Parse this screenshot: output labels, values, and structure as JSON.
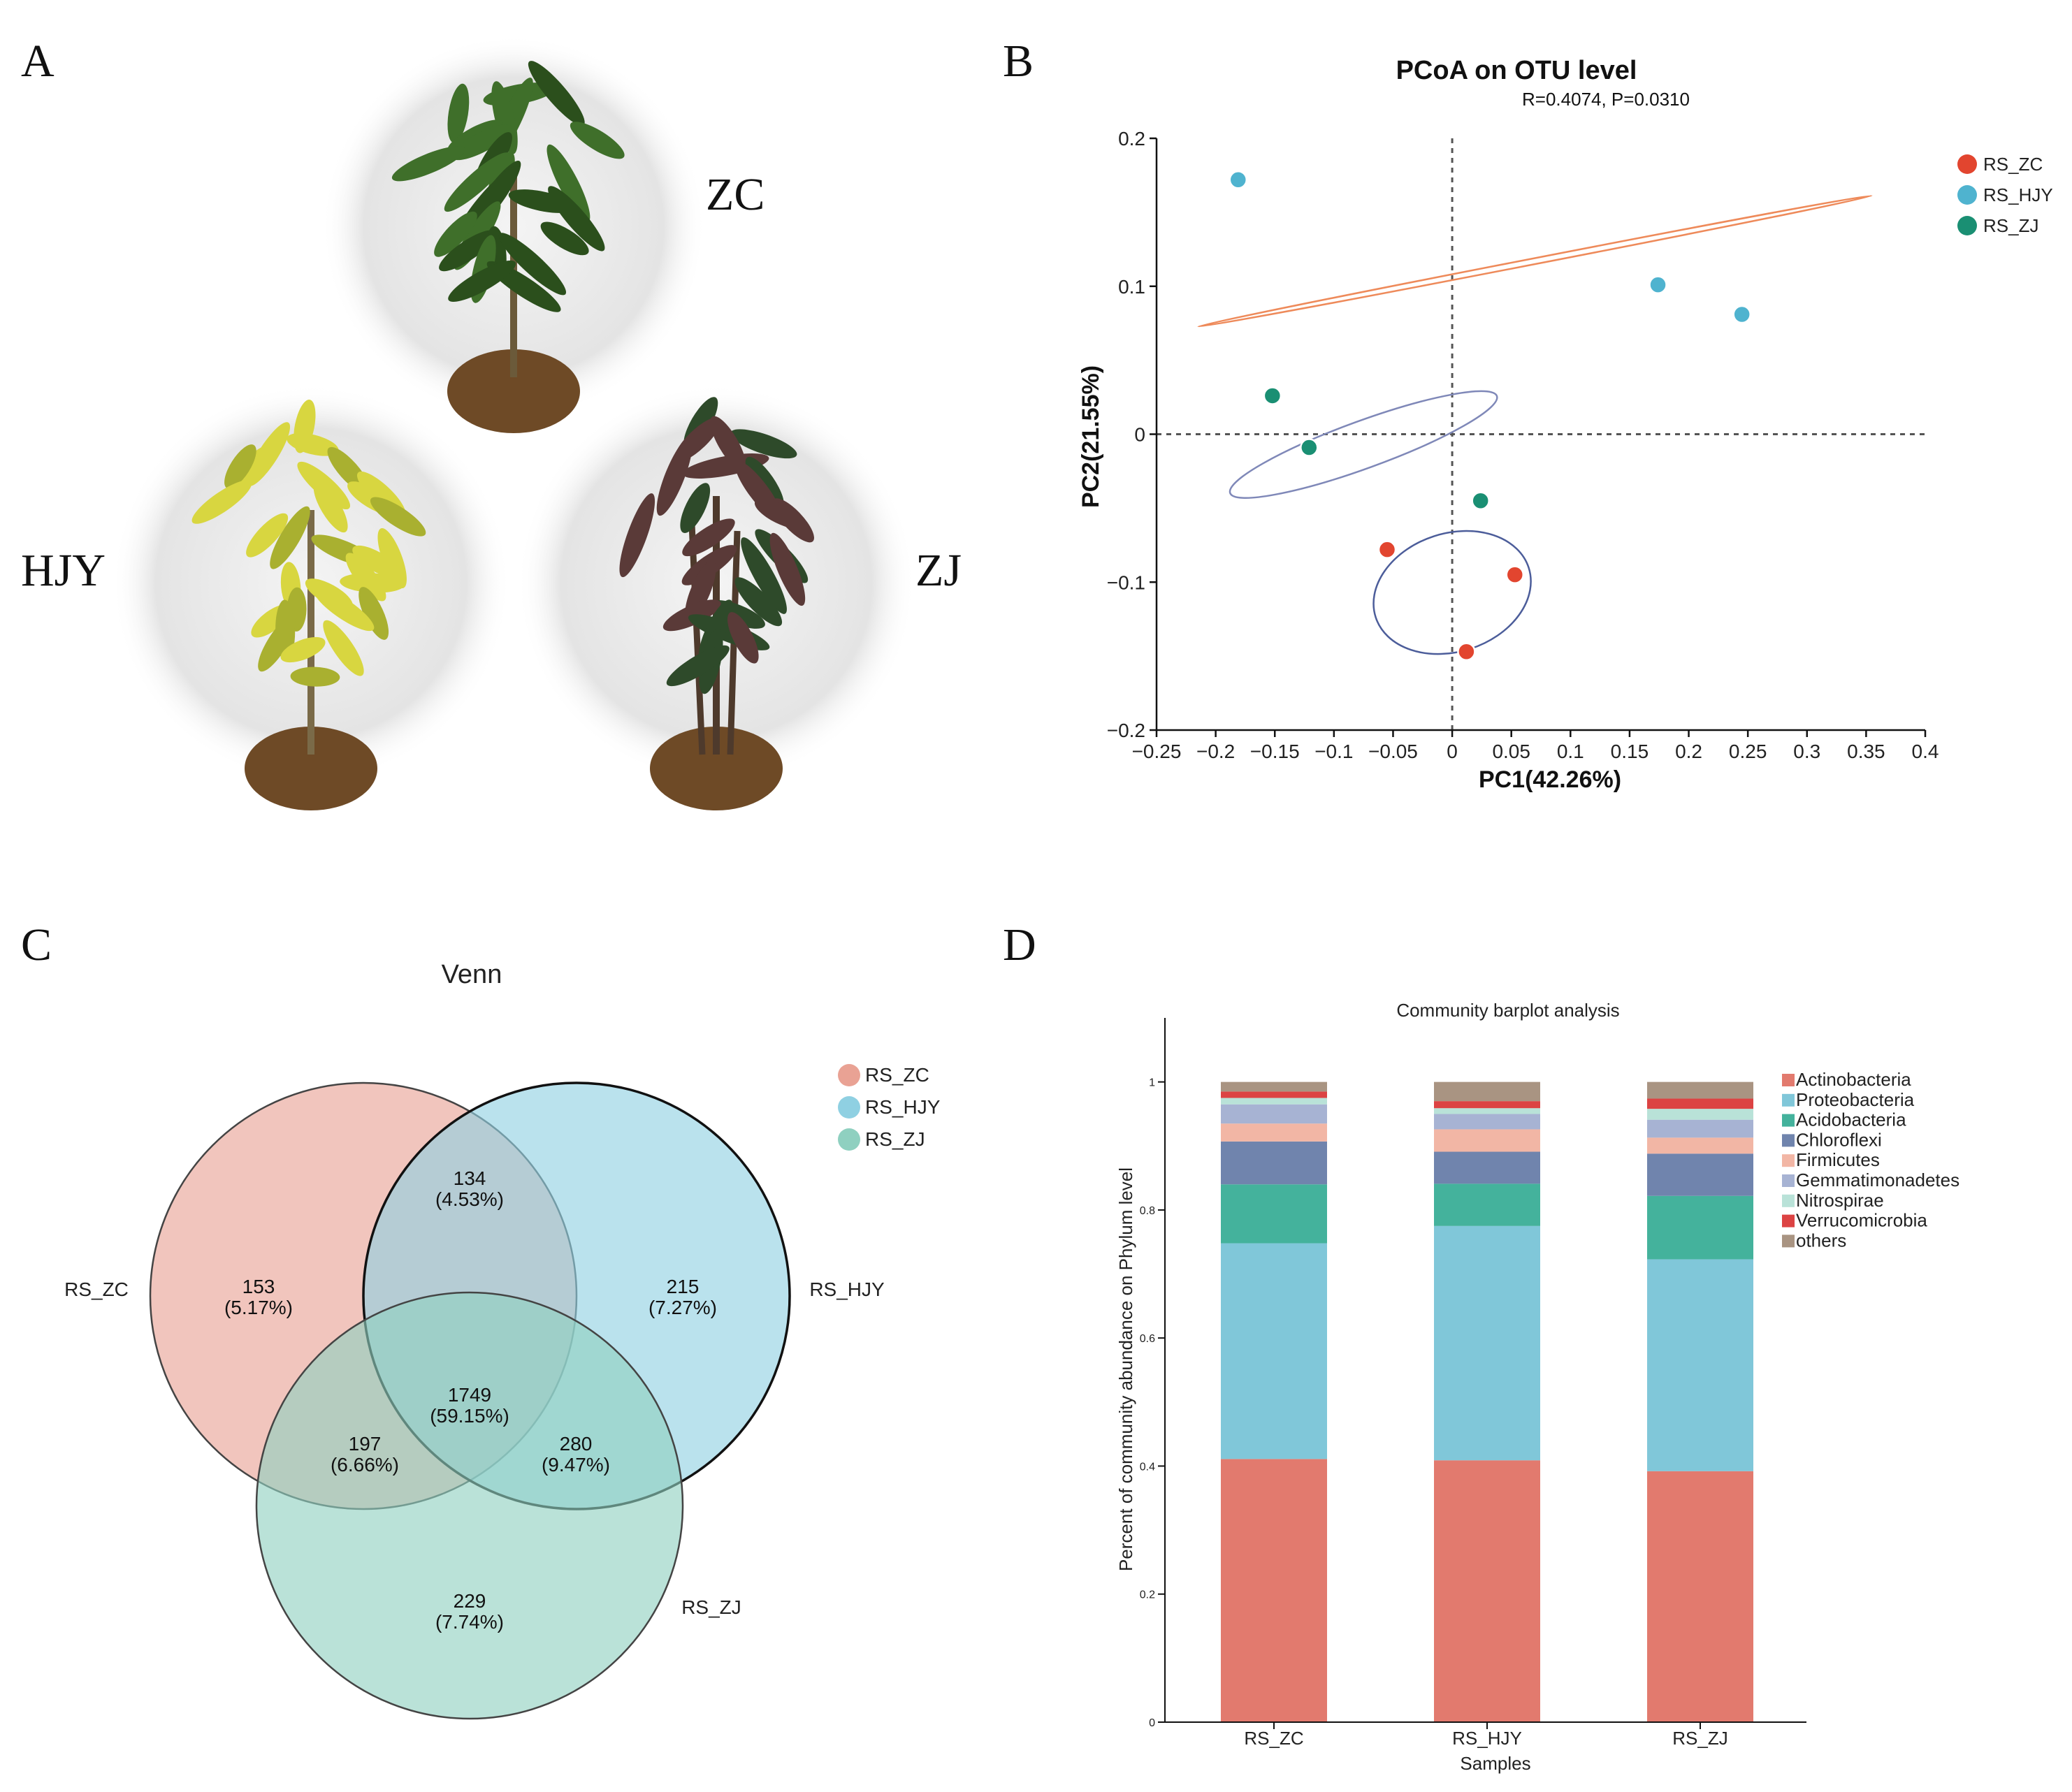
{
  "panels": {
    "a": {
      "letter": "A",
      "plants": [
        {
          "label": "ZC",
          "leaf": "#3f6f2a",
          "leaf_dark": "#2b4f1c",
          "stem": "#6b5a3a"
        },
        {
          "label": "HJY",
          "leaf": "#d8d640",
          "leaf_dark": "#a9b030",
          "stem": "#7a6a48"
        },
        {
          "label": "ZJ",
          "leaf": "#5a3a38",
          "leaf_dark": "#2e4a2a",
          "stem": "#4e3a2c"
        }
      ],
      "soil_color": "#6e4a26"
    },
    "b": {
      "letter": "B",
      "title": "PCoA on OTU level",
      "subtitle": "R=0.4074, P=0.0310",
      "xlabel": "PC1(42.26%)",
      "ylabel": "PC2(21.55%)"
    },
    "c": {
      "letter": "C",
      "title": "Venn"
    },
    "d": {
      "letter": "D"
    }
  },
  "chart_data": [
    {
      "type": "scatter",
      "title": "PCoA on OTU level",
      "subtitle": "R=0.4074, P=0.0310",
      "xlabel": "PC1(42.26%)",
      "ylabel": "PC2(21.55%)",
      "xlim": [
        -0.25,
        0.4
      ],
      "ylim": [
        -0.2,
        0.2
      ],
      "xticks": [
        -0.25,
        -0.2,
        -0.15,
        -0.1,
        -0.05,
        0,
        0.05,
        0.1,
        0.15,
        0.2,
        0.25,
        0.3,
        0.35,
        0.4
      ],
      "xtick_labels": [
        "−0.25",
        "−0.2",
        "−0.15",
        "−0.1",
        "−0.05",
        "0",
        "0.05",
        "0.1",
        "0.15",
        "0.2",
        "0.25",
        "0.3",
        "0.35",
        "0.4"
      ],
      "yticks": [
        -0.2,
        -0.1,
        0,
        0.1,
        0.2
      ],
      "ytick_labels": [
        "−0.2",
        "−0.1",
        "0",
        "0.1",
        "0.2"
      ],
      "legend_position": "top-right",
      "series": [
        {
          "name": "RS_ZC",
          "color": "#e2452f",
          "points": [
            [
              -0.055,
              -0.078
            ],
            [
              0.053,
              -0.095
            ],
            [
              0.012,
              -0.147
            ]
          ],
          "ellipse": {
            "cx": 0.0,
            "cy": -0.107,
            "rx": 0.068,
            "ry": 0.04,
            "angle_deg": -18,
            "color": "#4c5d9a"
          }
        },
        {
          "name": "RS_HJY",
          "color": "#4fb3cf",
          "points": [
            [
              -0.181,
              0.172
            ],
            [
              0.174,
              0.101
            ],
            [
              0.245,
              0.081
            ]
          ],
          "ellipse": {
            "cx": 0.07,
            "cy": 0.117,
            "rx": 0.29,
            "ry": 0.002,
            "angle_deg": -11,
            "color": "#ee8a5a"
          }
        },
        {
          "name": "RS_ZJ",
          "color": "#1a8f73",
          "points": [
            [
              -0.152,
              0.026
            ],
            [
              -0.121,
              -0.009
            ],
            [
              0.024,
              -0.045
            ]
          ],
          "ellipse": {
            "cx": -0.075,
            "cy": -0.007,
            "rx": 0.12,
            "ry": 0.016,
            "angle_deg": -20,
            "color": "#7f88b8"
          }
        }
      ]
    },
    {
      "type": "venn",
      "title": "Venn",
      "sets": [
        {
          "name": "RS_ZC",
          "color": "#e9a294"
        },
        {
          "name": "RS_HJY",
          "color": "#8fd0e2"
        },
        {
          "name": "RS_ZJ",
          "color": "#8fd0c0"
        }
      ],
      "regions": [
        {
          "sets": [
            "RS_ZC"
          ],
          "count": "153",
          "percent": "(5.17%)"
        },
        {
          "sets": [
            "RS_HJY"
          ],
          "count": "215",
          "percent": "(7.27%)"
        },
        {
          "sets": [
            "RS_ZJ"
          ],
          "count": "229",
          "percent": "(7.74%)"
        },
        {
          "sets": [
            "RS_ZC",
            "RS_HJY"
          ],
          "count": "134",
          "percent": "(4.53%)"
        },
        {
          "sets": [
            "RS_ZC",
            "RS_ZJ"
          ],
          "count": "197",
          "percent": "(6.66%)"
        },
        {
          "sets": [
            "RS_HJY",
            "RS_ZJ"
          ],
          "count": "280",
          "percent": "(9.47%)"
        },
        {
          "sets": [
            "RS_ZC",
            "RS_HJY",
            "RS_ZJ"
          ],
          "count": "1749",
          "percent": "(59.15%)"
        }
      ]
    },
    {
      "type": "bar",
      "stacked": true,
      "title": "Community barplot analysis",
      "xlabel": "Samples",
      "ylabel": "Percent of community abundance on Phylum level",
      "ylim": [
        0,
        1.1
      ],
      "yticks": [
        0,
        0.2,
        0.4,
        0.6,
        0.8,
        1
      ],
      "ytick_labels": [
        "0",
        "0.2",
        "0.4",
        "0.6",
        "0.8",
        "1"
      ],
      "categories": [
        "RS_ZC",
        "RS_HJY",
        "RS_ZJ"
      ],
      "legend_position": "right",
      "series": [
        {
          "name": "Actinobacteria",
          "color": "#e27a6e",
          "values": [
            0.411,
            0.409,
            0.392
          ]
        },
        {
          "name": "Proteobacteria",
          "color": "#80c7d9",
          "values": [
            0.337,
            0.366,
            0.331
          ]
        },
        {
          "name": "Acidobacteria",
          "color": "#44b29c",
          "values": [
            0.092,
            0.066,
            0.099
          ]
        },
        {
          "name": "Chloroflexi",
          "color": "#7084ad",
          "values": [
            0.067,
            0.05,
            0.066
          ]
        },
        {
          "name": "Firmicutes",
          "color": "#f2b6a5",
          "values": [
            0.028,
            0.035,
            0.025
          ]
        },
        {
          "name": "Gemmatimonadetes",
          "color": "#a7b3d3",
          "values": [
            0.03,
            0.024,
            0.028
          ]
        },
        {
          "name": "Nitrospirae",
          "color": "#b9e2d8",
          "values": [
            0.01,
            0.009,
            0.017
          ]
        },
        {
          "name": "Verrucomicrobia",
          "color": "#dc4343",
          "values": [
            0.01,
            0.011,
            0.016
          ]
        },
        {
          "name": "others",
          "color": "#a99482",
          "values": [
            0.015,
            0.03,
            0.026
          ]
        }
      ]
    }
  ]
}
